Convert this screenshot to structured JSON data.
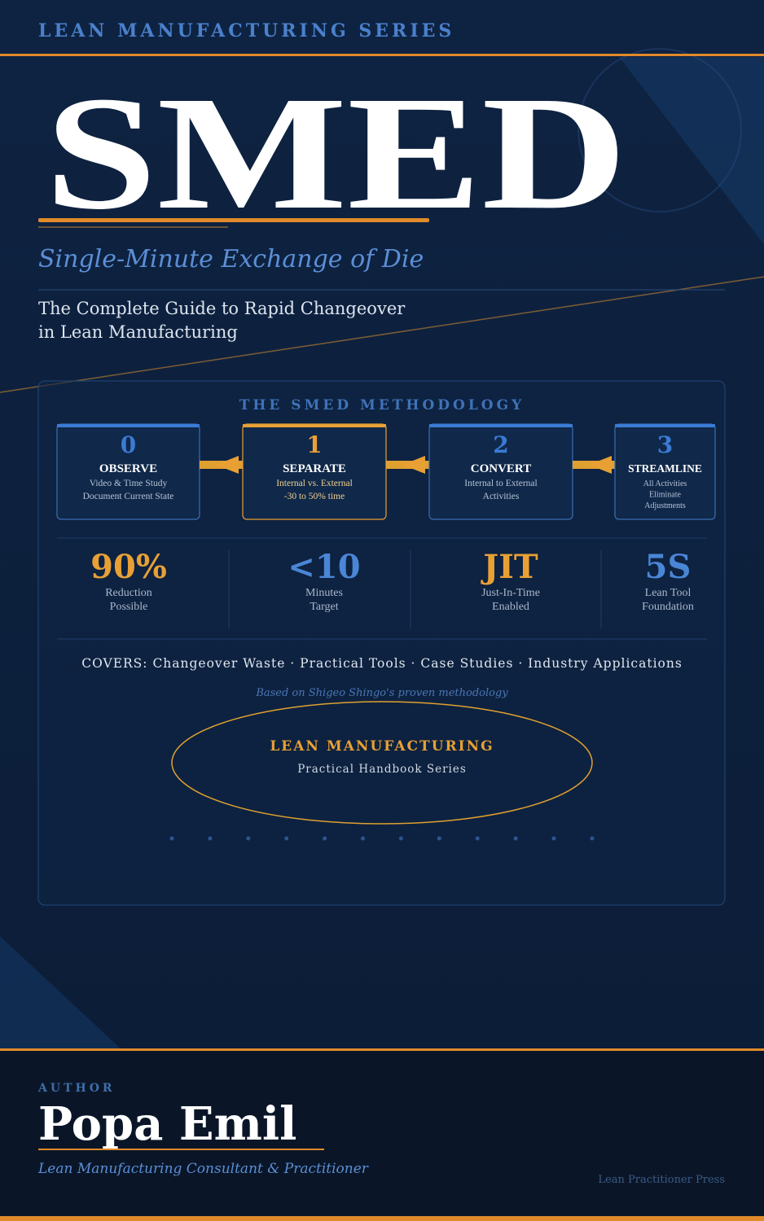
{
  "series_label": "LEAN MANUFACTURING SERIES",
  "title": "SMED",
  "subtitle": "Single-Minute Exchange of Die",
  "tagline": [
    "The Complete Guide to Rapid Changeover",
    "in Lean Manufacturing"
  ],
  "methodology": {
    "heading": "THE SMED METHODOLOGY",
    "steps": [
      {
        "number": 0,
        "name": "OBSERVE",
        "lines": [
          "Video & Time Study",
          "Document Current State"
        ]
      },
      {
        "number": 1,
        "name": "SEPARATE",
        "lines": [
          "Internal vs. External",
          "-30 to 50% time"
        ]
      },
      {
        "number": 2,
        "name": "CONVERT",
        "lines": [
          "Internal to External",
          "Activities"
        ]
      },
      {
        "number": 3,
        "name": "STREAMLINE",
        "lines": [
          "All Activities",
          "Eliminate",
          "Adjustments"
        ]
      }
    ]
  },
  "stats": [
    {
      "value": "90%",
      "label": [
        "Reduction",
        "Possible"
      ]
    },
    {
      "value": "<10",
      "label": [
        "Minutes",
        "Target"
      ]
    },
    {
      "value": "JIT",
      "label": [
        "Just-In-Time",
        "Enabled"
      ]
    },
    {
      "value": "5S",
      "label": [
        "Lean Tool",
        "Foundation"
      ]
    }
  ],
  "covers": "COVERS: Changeover Waste · Practical Tools · Case Studies · Industry Applications",
  "basis": "Based on Shigeo Shingo's proven methodology",
  "badge": {
    "title": "LEAN MANUFACTURING",
    "subtitle": "Practical Handbook Series"
  },
  "author": {
    "label": "AUTHOR",
    "name": "Popa Emil",
    "role": "Lean Manufacturing Consultant & Practitioner"
  },
  "publisher": "Lean Practitioner Press"
}
